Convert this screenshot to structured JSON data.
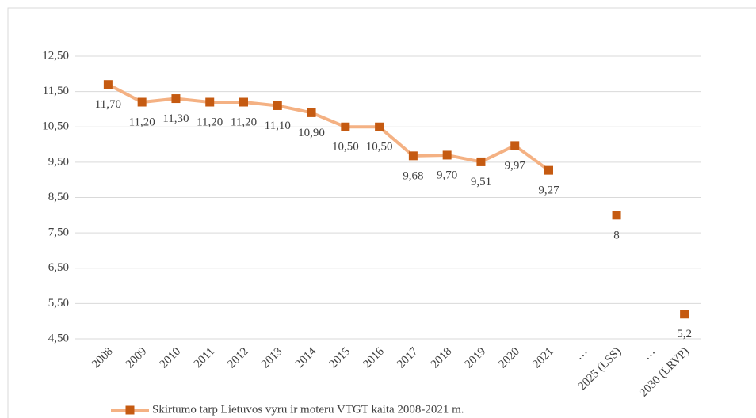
{
  "chart_data": {
    "type": "line",
    "categories": [
      "2008",
      "2009",
      "2010",
      "2011",
      "2012",
      "2013",
      "2014",
      "2015",
      "2016",
      "2017",
      "2018",
      "2019",
      "2020",
      "2021",
      "…",
      "2025 (LSS)",
      "…",
      "2030 (LRVP)"
    ],
    "series": [
      {
        "name": "Skirtumo tarp Lietuvos vyru ir moteru VTGT kaita 2008-2021 m.",
        "line_color": "#f4b183",
        "marker_color": "#c55a11",
        "values": [
          11.7,
          11.2,
          11.3,
          11.2,
          11.2,
          11.1,
          10.9,
          10.5,
          10.5,
          9.68,
          9.7,
          9.51,
          9.97,
          9.27,
          null,
          8,
          null,
          5.2
        ],
        "value_labels": [
          "11,70",
          "11,20",
          "11,30",
          "11,20",
          "11,20",
          "11,10",
          "10,90",
          "10,50",
          "10,50",
          "9,68",
          "9,70",
          "9,51",
          "9,97",
          "9,27",
          null,
          "8",
          null,
          "5,2"
        ]
      }
    ],
    "ylim": [
      4.5,
      12.5
    ],
    "yticks": [
      {
        "value": 4.5,
        "label": "4,50"
      },
      {
        "value": 5.5,
        "label": "5,50"
      },
      {
        "value": 6.5,
        "label": "6,50"
      },
      {
        "value": 7.5,
        "label": "7,50"
      },
      {
        "value": 8.5,
        "label": "8,50"
      },
      {
        "value": 9.5,
        "label": "9,50"
      },
      {
        "value": 10.5,
        "label": "10,50"
      },
      {
        "value": 11.5,
        "label": "11,50"
      },
      {
        "value": 12.5,
        "label": "12,50"
      }
    ],
    "grid": true,
    "legend": "bottom"
  }
}
